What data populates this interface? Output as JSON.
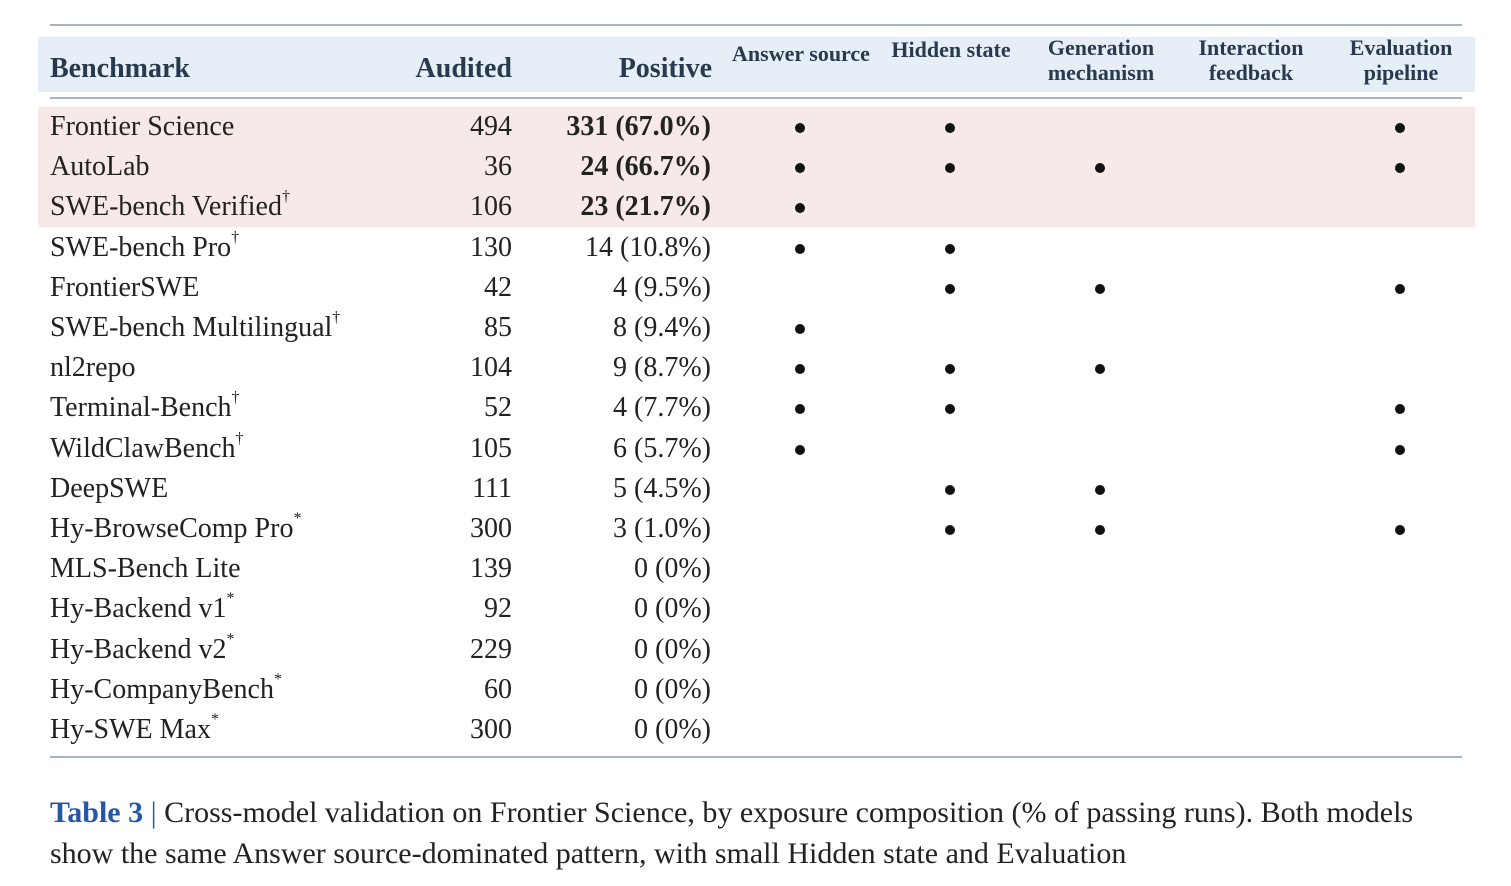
{
  "table": {
    "headers": {
      "benchmark": "Benchmark",
      "audited": "Audited",
      "positive": "Positive",
      "answer_source": "Answer source",
      "hidden_state": "Hidden state",
      "generation_mechanism": "Generation mechanism",
      "interaction_feedback": "Interaction feedback",
      "evaluation_pipeline": "Evaluation pipeline"
    },
    "rows": [
      {
        "name": "Frontier Science",
        "mark": "",
        "audited": "494",
        "positive": "331 (67.0%)",
        "highlighted": true,
        "answer": true,
        "hidden": true,
        "generation": false,
        "interaction": false,
        "evaluation": true
      },
      {
        "name": "AutoLab",
        "mark": "",
        "audited": "36",
        "positive": "24 (66.7%)",
        "highlighted": true,
        "answer": true,
        "hidden": true,
        "generation": true,
        "interaction": false,
        "evaluation": true
      },
      {
        "name": "SWE-bench Verified",
        "mark": "†",
        "audited": "106",
        "positive": "23 (21.7%)",
        "highlighted": true,
        "answer": true,
        "hidden": false,
        "generation": false,
        "interaction": false,
        "evaluation": false
      },
      {
        "name": "SWE-bench Pro",
        "mark": "†",
        "audited": "130",
        "positive": "14 (10.8%)",
        "highlighted": false,
        "answer": true,
        "hidden": true,
        "generation": false,
        "interaction": false,
        "evaluation": false
      },
      {
        "name": "FrontierSWE",
        "mark": "",
        "audited": "42",
        "positive": "4 (9.5%)",
        "highlighted": false,
        "answer": false,
        "hidden": true,
        "generation": true,
        "interaction": false,
        "evaluation": true
      },
      {
        "name": "SWE-bench Multilingual",
        "mark": "†",
        "audited": "85",
        "positive": "8 (9.4%)",
        "highlighted": false,
        "answer": true,
        "hidden": false,
        "generation": false,
        "interaction": false,
        "evaluation": false
      },
      {
        "name": "nl2repo",
        "mark": "",
        "audited": "104",
        "positive": "9 (8.7%)",
        "highlighted": false,
        "answer": true,
        "hidden": true,
        "generation": true,
        "interaction": false,
        "evaluation": false
      },
      {
        "name": "Terminal-Bench",
        "mark": "†",
        "audited": "52",
        "positive": "4 (7.7%)",
        "highlighted": false,
        "answer": true,
        "hidden": true,
        "generation": false,
        "interaction": false,
        "evaluation": true
      },
      {
        "name": "WildClawBench",
        "mark": "†",
        "audited": "105",
        "positive": "6 (5.7%)",
        "highlighted": false,
        "answer": true,
        "hidden": false,
        "generation": false,
        "interaction": false,
        "evaluation": true
      },
      {
        "name": "DeepSWE",
        "mark": "",
        "audited": "111",
        "positive": "5 (4.5%)",
        "highlighted": false,
        "answer": false,
        "hidden": true,
        "generation": true,
        "interaction": false,
        "evaluation": false
      },
      {
        "name": "Hy-BrowseComp Pro",
        "mark": "*",
        "audited": "300",
        "positive": "3 (1.0%)",
        "highlighted": false,
        "answer": false,
        "hidden": true,
        "generation": true,
        "interaction": false,
        "evaluation": true
      },
      {
        "name": "MLS-Bench Lite",
        "mark": "",
        "audited": "139",
        "positive": "0 (0%)",
        "highlighted": false,
        "answer": false,
        "hidden": false,
        "generation": false,
        "interaction": false,
        "evaluation": false
      },
      {
        "name": "Hy-Backend v1",
        "mark": "*",
        "audited": "92",
        "positive": "0 (0%)",
        "highlighted": false,
        "answer": false,
        "hidden": false,
        "generation": false,
        "interaction": false,
        "evaluation": false
      },
      {
        "name": "Hy-Backend v2",
        "mark": "*",
        "audited": "229",
        "positive": "0 (0%)",
        "highlighted": false,
        "answer": false,
        "hidden": false,
        "generation": false,
        "interaction": false,
        "evaluation": false
      },
      {
        "name": "Hy-CompanyBench",
        "mark": "*",
        "audited": "60",
        "positive": "0 (0%)",
        "highlighted": false,
        "answer": false,
        "hidden": false,
        "generation": false,
        "interaction": false,
        "evaluation": false
      },
      {
        "name": "Hy-SWE Max",
        "mark": "*",
        "audited": "300",
        "positive": "0 (0%)",
        "highlighted": false,
        "answer": false,
        "hidden": false,
        "generation": false,
        "interaction": false,
        "evaluation": false
      }
    ]
  },
  "caption": {
    "label": "Table 3",
    "separator": "|",
    "text": "Cross-model validation on Frontier Science, by exposure composition (% of passing runs). Both models show the same Answer source-dominated pattern, with small Hidden state and Evaluation"
  }
}
